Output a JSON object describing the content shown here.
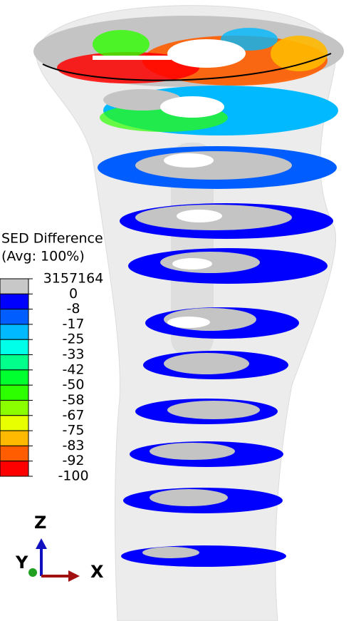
{
  "legend": {
    "title": "SED Difference",
    "subtitle": "(Avg: 100%)",
    "labels": [
      3157164,
      0,
      -8,
      -17,
      -25,
      -33,
      -42,
      -50,
      -58,
      -67,
      -75,
      -83,
      -92,
      -100
    ],
    "colors": [
      "#c8c8c8",
      "#0000ff",
      "#005dff",
      "#00b9ff",
      "#00ffe8",
      "#00ff8b",
      "#00ff2e",
      "#2eff00",
      "#8bff00",
      "#e8ff00",
      "#ffb900",
      "#ff5d00",
      "#ff0000"
    ]
  },
  "triad": {
    "z": "Z",
    "y": "Y",
    "x": "X"
  }
}
